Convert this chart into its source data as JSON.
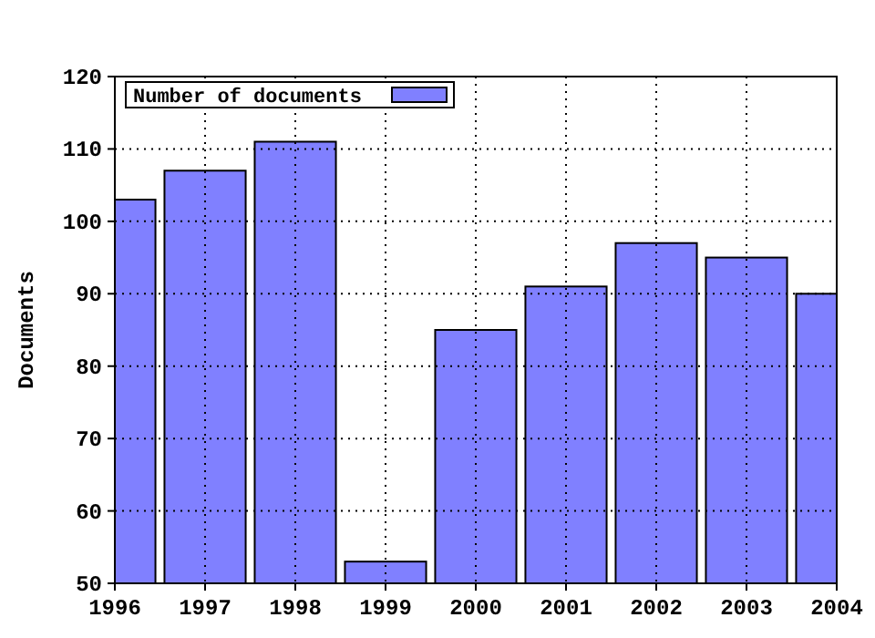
{
  "chart_data": {
    "type": "bar",
    "ylabel": "Documents",
    "x": [
      1996,
      1997,
      1998,
      1999,
      2000,
      2001,
      2002,
      2003,
      2004
    ],
    "series": [
      {
        "name": "Number of documents",
        "color": "#8080ff",
        "values": [
          103,
          107,
          111,
          53,
          85,
          91,
          97,
          95,
          90
        ]
      }
    ],
    "xlim": [
      1996,
      2004
    ],
    "xticks": [
      1996,
      1997,
      1998,
      1999,
      2000,
      2001,
      2002,
      2003,
      2004
    ],
    "ylim": [
      50,
      120
    ],
    "yticks": [
      50,
      60,
      70,
      80,
      90,
      100,
      110,
      120
    ],
    "grid": true,
    "line_style": "dotted",
    "legend": "top left"
  }
}
